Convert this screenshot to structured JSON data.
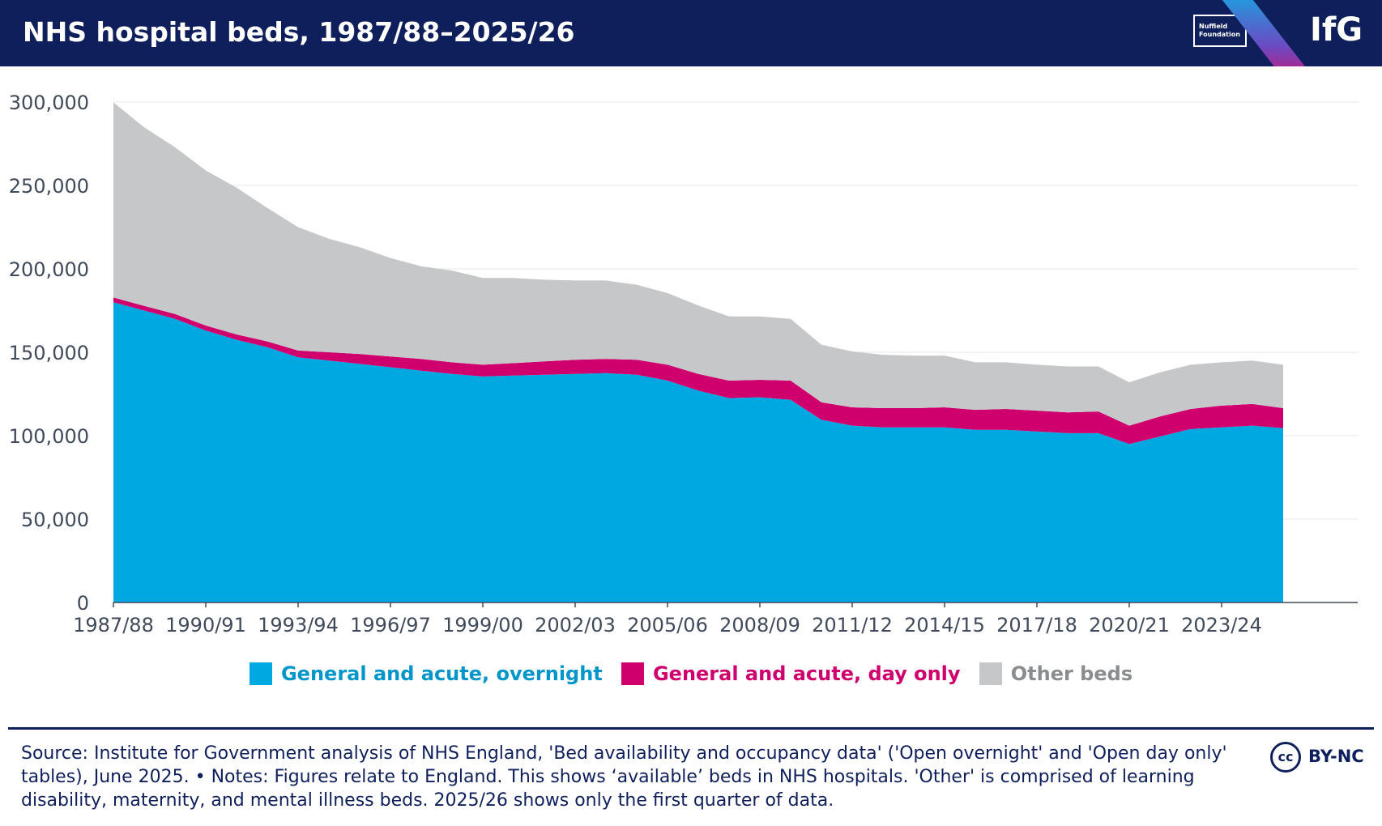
{
  "header": {
    "title": "NHS hospital beds, 1987/88–2025/26",
    "partner_logo_lines": [
      "Nuffield",
      "Foundation"
    ],
    "brand": "IfG"
  },
  "chart_data": {
    "type": "area",
    "stacked": true,
    "title": "NHS hospital beds, 1987/88–2025/26",
    "xlabel": "",
    "ylabel": "",
    "ylim": [
      0,
      300000
    ],
    "yticks": [
      0,
      50000,
      100000,
      150000,
      200000,
      250000,
      300000
    ],
    "ytick_labels": [
      "0",
      "50,000",
      "100,000",
      "150,000",
      "200,000",
      "250,000",
      "300,000"
    ],
    "grid": true,
    "legend_position": "bottom-center",
    "x": [
      "1987/88",
      "1988/89",
      "1989/90",
      "1990/91",
      "1991/92",
      "1992/93",
      "1993/94",
      "1994/95",
      "1995/96",
      "1996/97",
      "1997/98",
      "1998/99",
      "1999/00",
      "2000/01",
      "2001/02",
      "2002/03",
      "2003/04",
      "2004/05",
      "2005/06",
      "2006/07",
      "2007/08",
      "2008/09",
      "2009/10",
      "2010/11",
      "2011/12",
      "2012/13",
      "2013/14",
      "2014/15",
      "2015/16",
      "2016/17",
      "2017/18",
      "2018/19",
      "2019/20",
      "2020/21",
      "2021/22",
      "2022/23",
      "2023/24",
      "2024/25",
      "2025/26"
    ],
    "xtick_labels": [
      "1987/88",
      "1990/91",
      "1993/94",
      "1996/97",
      "1999/00",
      "2002/03",
      "2005/06",
      "2008/09",
      "2011/12",
      "2014/15",
      "2017/18",
      "2020/21",
      "2023/24"
    ],
    "series": [
      {
        "name": "General and acute, overnight",
        "color": "#00a8e1",
        "values": [
          180000,
          175000,
          170000,
          163000,
          157500,
          153000,
          147000,
          145000,
          143000,
          141000,
          139000,
          137000,
          135500,
          136000,
          136500,
          137000,
          137500,
          136500,
          133000,
          127000,
          122500,
          123000,
          121500,
          109500,
          106000,
          105000,
          105000,
          105000,
          103500,
          103500,
          102500,
          101500,
          101500,
          95000,
          99500,
          104000,
          105000,
          106000,
          104500
        ]
      },
      {
        "name": "General and acute, day only",
        "color": "#cf006d",
        "values": [
          2800,
          2800,
          2900,
          3000,
          3200,
          3500,
          4000,
          5000,
          6000,
          6500,
          7000,
          7000,
          7000,
          7500,
          8000,
          8500,
          8500,
          9000,
          9500,
          10000,
          10500,
          10500,
          11500,
          10500,
          11000,
          11500,
          11500,
          12000,
          12000,
          12500,
          12500,
          12500,
          13000,
          11000,
          12000,
          12000,
          13000,
          13000,
          12000
        ]
      },
      {
        "name": "Other beds",
        "color": "#c5c7c9",
        "values": [
          117000,
          107000,
          100000,
          93000,
          88000,
          80000,
          74000,
          68000,
          64000,
          59000,
          55500,
          55000,
          52000,
          51000,
          49000,
          47500,
          47000,
          45000,
          43000,
          41000,
          38500,
          38000,
          37000,
          34500,
          33500,
          32000,
          31500,
          31000,
          28500,
          28000,
          27500,
          27500,
          27000,
          26000,
          26500,
          26500,
          26000,
          26000,
          26000
        ]
      }
    ]
  },
  "footer": {
    "source": "Source: Institute for Government analysis of NHS England, 'Bed availability and occupancy data' ('Open overnight' and 'Open day only' tables), June 2025. • Notes: Figures relate to England. This shows ‘available’ beds in NHS hospitals. 'Other' is comprised of learning disability, maternity, and mental illness beds. 2025/26 shows only the first quarter of data.",
    "license_icon": "cc",
    "license": "BY-NC"
  }
}
